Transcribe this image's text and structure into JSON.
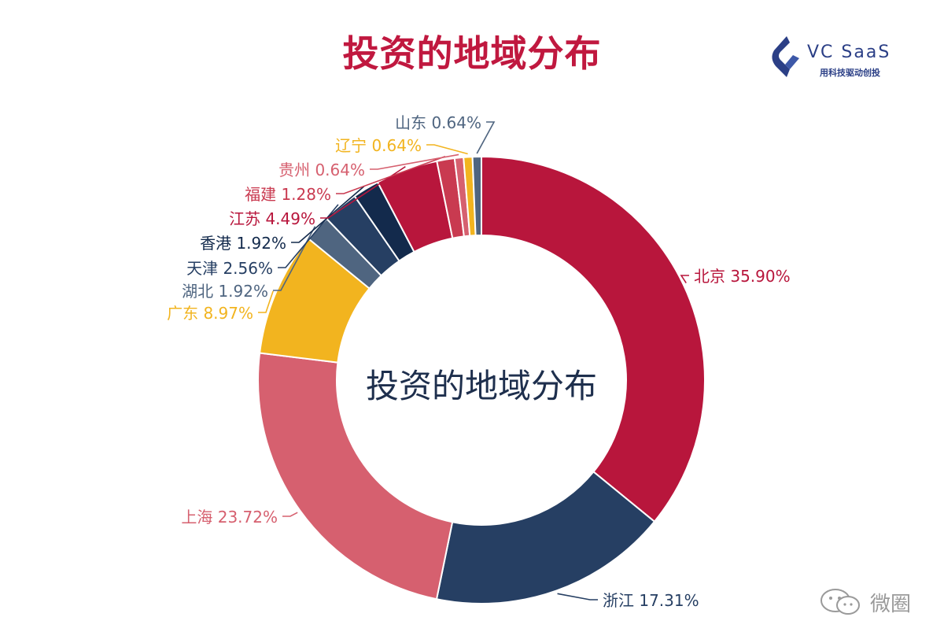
{
  "header": {
    "title": "投资的地域分布"
  },
  "logo": {
    "name": "VC SaaS",
    "tagline": "用科技驱动创投",
    "color": "#2b3f86"
  },
  "watermark": {
    "text": "微圈"
  },
  "chart_data": {
    "type": "pie",
    "variant": "donut",
    "title": "投资的地域分布",
    "center_label": "投资的地域分布",
    "start_angle_deg": 0,
    "direction": "clockwise",
    "slices": [
      {
        "label": "北京",
        "value": 35.9,
        "display": "北京 35.90%",
        "color": "#b8163c"
      },
      {
        "label": "浙江",
        "value": 17.31,
        "display": "浙江 17.31%",
        "color": "#263f63"
      },
      {
        "label": "上海",
        "value": 23.72,
        "display": "上海 23.72%",
        "color": "#d6606f"
      },
      {
        "label": "广东",
        "value": 8.97,
        "display": "广东 8.97%",
        "color": "#f2b41f"
      },
      {
        "label": "湖北",
        "value": 1.92,
        "display": "湖北 1.92%",
        "color": "#4f6580"
      },
      {
        "label": "天津",
        "value": 2.56,
        "display": "天津 2.56%",
        "color": "#263f63"
      },
      {
        "label": "香港",
        "value": 1.92,
        "display": "香港 1.92%",
        "color": "#132a4c"
      },
      {
        "label": "江苏",
        "value": 4.49,
        "display": "江苏 4.49%",
        "color": "#b8163c"
      },
      {
        "label": "福建",
        "value": 1.28,
        "display": "福建 1.28%",
        "color": "#c93a50"
      },
      {
        "label": "贵州",
        "value": 0.64,
        "display": "贵州 0.64%",
        "color": "#d6606f"
      },
      {
        "label": "辽宁",
        "value": 0.64,
        "display": "辽宁 0.64%",
        "color": "#f2b41f"
      },
      {
        "label": "山东",
        "value": 0.64,
        "display": "山东 0.64%",
        "color": "#4f6580"
      }
    ]
  }
}
